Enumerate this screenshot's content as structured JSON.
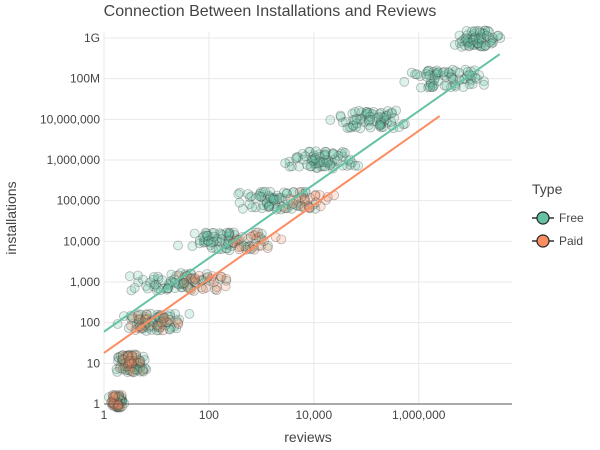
{
  "chart_data": {
    "type": "scatter",
    "title": "Connection Between Installations and Reviews",
    "xlabel": "reviews",
    "ylabel": "installations",
    "x_scale": "log",
    "y_scale": "log",
    "xlim": [
      1,
      60000000
    ],
    "ylim": [
      1,
      1000000000
    ],
    "x_ticks": [
      {
        "value": 1,
        "label": "1"
      },
      {
        "value": 100,
        "label": "100"
      },
      {
        "value": 10000,
        "label": "10,000"
      },
      {
        "value": 1000000,
        "label": "1,000,000"
      }
    ],
    "y_ticks": [
      {
        "value": 1,
        "label": "1"
      },
      {
        "value": 10,
        "label": "10"
      },
      {
        "value": 100,
        "label": "100"
      },
      {
        "value": 1000,
        "label": "1,000"
      },
      {
        "value": 10000,
        "label": "10,000"
      },
      {
        "value": 100000,
        "label": "100,000"
      },
      {
        "value": 1000000,
        "label": "1,000,000"
      },
      {
        "value": 10000000,
        "label": "10,000,000"
      },
      {
        "value": 100000000,
        "label": "100M"
      },
      {
        "value": 1000000000,
        "label": "1G"
      }
    ],
    "grid": true,
    "legend": {
      "title": "Type",
      "position": "right"
    },
    "series": [
      {
        "name": "Free",
        "color": "#66c2a5",
        "clusters": [
          {
            "installs": 1,
            "reviews_min": 1,
            "reviews_max": 3
          },
          {
            "installs": 10,
            "reviews_min": 1,
            "reviews_max": 10
          },
          {
            "installs": 100,
            "reviews_min": 1,
            "reviews_max": 60
          },
          {
            "installs": 1000,
            "reviews_min": 1,
            "reviews_max": 400
          },
          {
            "installs": 10000,
            "reviews_min": 10,
            "reviews_max": 3000
          },
          {
            "installs": 100000,
            "reviews_min": 100,
            "reviews_max": 30000
          },
          {
            "installs": 1000000,
            "reviews_min": 800,
            "reviews_max": 200000
          },
          {
            "installs": 10000000,
            "reviews_min": 8000,
            "reviews_max": 1500000
          },
          {
            "installs": 100000000,
            "reviews_min": 100000,
            "reviews_max": 50000000
          },
          {
            "installs": 1000000000,
            "reviews_min": 2000000,
            "reviews_max": 60000000
          }
        ],
        "trend": {
          "x": [
            1,
            35000000
          ],
          "y": [
            60,
            400000000
          ]
        }
      },
      {
        "name": "Paid",
        "color": "#fc8d62",
        "clusters": [
          {
            "installs": 1,
            "reviews_min": 1,
            "reviews_max": 3
          },
          {
            "installs": 10,
            "reviews_min": 1,
            "reviews_max": 8
          },
          {
            "installs": 100,
            "reviews_min": 1,
            "reviews_max": 60
          },
          {
            "installs": 1000,
            "reviews_min": 10,
            "reviews_max": 500
          },
          {
            "installs": 10000,
            "reviews_min": 100,
            "reviews_max": 5000
          },
          {
            "installs": 100000,
            "reviews_min": 1000,
            "reviews_max": 50000
          }
        ],
        "trend": {
          "x": [
            1,
            2500000
          ],
          "y": [
            18,
            12000000
          ]
        }
      }
    ]
  }
}
